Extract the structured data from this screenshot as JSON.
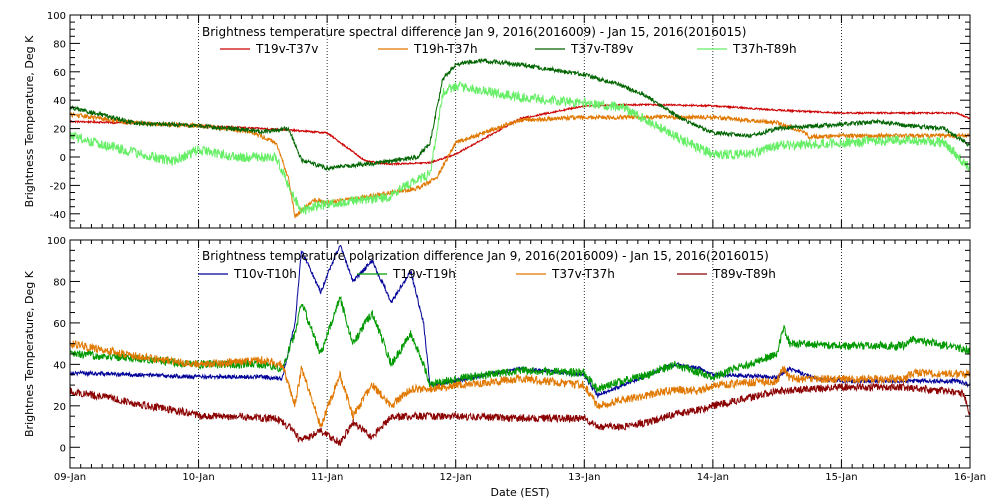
{
  "chart_data": [
    {
      "type": "line",
      "title": "Brightness temperature spectral difference    Jan  9, 2016(2016009) - Jan 15, 2016(2016015)",
      "ylabel": "Brightness Temperature, Deg K",
      "xlabel": "",
      "xlim": [
        0,
        7
      ],
      "ylim": [
        -50,
        100
      ],
      "yticks": [
        -40,
        -20,
        0,
        20,
        40,
        60,
        80,
        100
      ],
      "ytick_labels": [
        "-40",
        "-20",
        "0",
        "20",
        "40",
        "60",
        "80",
        "100"
      ],
      "grid": true,
      "series": [
        {
          "name": "T19v-T37v",
          "color": "#cc0000",
          "noise": 0.6,
          "x": [
            0,
            0.5,
            1.0,
            1.5,
            1.7,
            2.0,
            2.3,
            2.5,
            2.8,
            3.0,
            3.5,
            4.0,
            4.5,
            5.0,
            5.5,
            6.0,
            6.5,
            6.9,
            7.0
          ],
          "y": [
            25,
            24,
            22,
            20,
            19,
            17,
            -3,
            -5,
            -4,
            2,
            27,
            36,
            37,
            36,
            33,
            31,
            31,
            31,
            27
          ]
        },
        {
          "name": "T19h-T37h",
          "color": "#e07800",
          "noise": 1.5,
          "x": [
            0,
            0.5,
            1.0,
            1.4,
            1.6,
            1.7,
            1.75,
            1.9,
            2.0,
            2.3,
            2.5,
            2.7,
            2.85,
            3.0,
            3.5,
            4.0,
            4.5,
            5.0,
            5.5,
            5.7,
            5.75,
            6.0,
            6.5,
            6.9,
            7.0
          ],
          "y": [
            30,
            24,
            22,
            18,
            10,
            -15,
            -42,
            -30,
            -32,
            -28,
            -25,
            -22,
            -15,
            10,
            26,
            28,
            28,
            28,
            24,
            18,
            14,
            15,
            15,
            15,
            15
          ]
        },
        {
          "name": "T37v-T89v",
          "color": "#006400",
          "noise": 1.5,
          "x": [
            0,
            0.5,
            1.0,
            1.5,
            1.7,
            1.8,
            2.0,
            2.3,
            2.5,
            2.7,
            2.8,
            2.9,
            3.0,
            3.2,
            3.5,
            4.0,
            4.3,
            4.5,
            4.7,
            4.8,
            5.0,
            5.3,
            5.5,
            6.0,
            6.3,
            6.5,
            6.8,
            7.0
          ],
          "y": [
            35,
            24,
            22,
            18,
            20,
            -2,
            -8,
            -5,
            -3,
            0,
            10,
            55,
            65,
            68,
            65,
            58,
            50,
            42,
            30,
            25,
            17,
            15,
            20,
            23,
            25,
            22,
            20,
            8
          ]
        },
        {
          "name": "T37h-T89h",
          "color": "#66ee66",
          "noise": 3.5,
          "x": [
            0,
            0.5,
            0.8,
            1.0,
            1.3,
            1.6,
            1.7,
            1.8,
            2.0,
            2.3,
            2.5,
            2.6,
            2.8,
            2.9,
            3.0,
            3.5,
            4.0,
            4.3,
            4.5,
            4.7,
            4.8,
            5.0,
            5.3,
            5.5,
            6.0,
            6.5,
            6.8,
            7.0
          ],
          "y": [
            15,
            3,
            -3,
            5,
            0,
            0,
            -20,
            -38,
            -33,
            -30,
            -28,
            -20,
            -12,
            45,
            50,
            42,
            38,
            35,
            25,
            15,
            10,
            2,
            2,
            8,
            10,
            12,
            10,
            -8
          ]
        }
      ]
    },
    {
      "type": "line",
      "title": "Brightness temperature polarization difference    Jan  9, 2016(2016009) - Jan 15, 2016(2016015)",
      "ylabel": "Brightnes Temperature, Deg K",
      "xlabel": "Date (EST)",
      "xlim": [
        0,
        7
      ],
      "ylim": [
        -10,
        100
      ],
      "yticks": [
        0,
        20,
        40,
        60,
        80,
        100
      ],
      "ytick_labels": [
        "0",
        "20",
        "40",
        "60",
        "80",
        "100"
      ],
      "categories": [
        "09-Jan",
        "10-Jan",
        "11-Jan",
        "12-Jan",
        "13-Jan",
        "14-Jan",
        "15-Jan",
        "16-Jan"
      ],
      "grid": true,
      "series": [
        {
          "name": "T10v-T10h",
          "color": "#000099",
          "noise": 1.0,
          "x": [
            0,
            0.5,
            1.0,
            1.5,
            1.65,
            1.75,
            1.8,
            1.95,
            2.1,
            2.2,
            2.35,
            2.5,
            2.65,
            2.75,
            2.8,
            3.0,
            3.5,
            4.0,
            4.1,
            4.3,
            4.5,
            4.7,
            4.9,
            5.0,
            5.5,
            5.6,
            5.8,
            6.0,
            6.5,
            6.9,
            7.0
          ],
          "y": [
            36,
            35,
            34,
            34,
            33,
            60,
            95,
            75,
            98,
            80,
            90,
            70,
            85,
            60,
            30,
            32,
            38,
            35,
            25,
            30,
            35,
            40,
            38,
            35,
            34,
            38,
            33,
            32,
            32,
            32,
            30
          ]
        },
        {
          "name": "T19v-T19h",
          "color": "#009900",
          "noise": 2.0,
          "x": [
            0,
            0.5,
            1.0,
            1.5,
            1.65,
            1.75,
            1.8,
            1.95,
            2.1,
            2.2,
            2.35,
            2.5,
            2.65,
            2.75,
            2.8,
            3.0,
            3.5,
            4.0,
            4.1,
            4.3,
            4.5,
            4.7,
            4.9,
            5.0,
            5.5,
            5.55,
            5.6,
            6.0,
            6.5,
            6.55,
            7.0
          ],
          "y": [
            45,
            43,
            40,
            40,
            38,
            55,
            70,
            45,
            72,
            50,
            65,
            40,
            55,
            40,
            30,
            33,
            37,
            36,
            28,
            32,
            35,
            40,
            36,
            34,
            45,
            58,
            50,
            49,
            49,
            52,
            47
          ]
        },
        {
          "name": "T37v-T37h",
          "color": "#e07800",
          "noise": 2.0,
          "x": [
            0,
            0.5,
            1.0,
            1.5,
            1.65,
            1.75,
            1.8,
            1.95,
            2.1,
            2.2,
            2.35,
            2.5,
            2.65,
            2.75,
            2.8,
            3.0,
            3.5,
            4.0,
            4.1,
            4.3,
            4.5,
            4.7,
            4.9,
            5.0,
            5.5,
            5.55,
            5.6,
            6.0,
            6.5,
            6.55,
            7.0
          ],
          "y": [
            50,
            44,
            40,
            42,
            40,
            20,
            38,
            10,
            35,
            15,
            30,
            20,
            28,
            28,
            28,
            30,
            33,
            30,
            20,
            23,
            25,
            28,
            27,
            30,
            32,
            38,
            33,
            33,
            33,
            36,
            35
          ]
        },
        {
          "name": "T89v-T89h",
          "color": "#8b0000",
          "noise": 1.8,
          "x": [
            0,
            0.3,
            0.6,
            0.9,
            1.0,
            1.3,
            1.5,
            1.6,
            1.7,
            1.8,
            1.95,
            2.1,
            2.2,
            2.35,
            2.5,
            2.7,
            2.8,
            3.0,
            3.5,
            4.0,
            4.1,
            4.3,
            4.5,
            4.7,
            4.9,
            5.0,
            5.5,
            6.0,
            6.5,
            6.95,
            7.0
          ],
          "y": [
            27,
            24,
            20,
            17,
            15,
            15,
            14,
            14,
            10,
            3,
            8,
            2,
            12,
            5,
            15,
            15,
            15,
            15,
            14,
            14,
            10,
            10,
            12,
            16,
            18,
            20,
            27,
            29,
            29,
            26,
            15
          ]
        }
      ]
    }
  ]
}
